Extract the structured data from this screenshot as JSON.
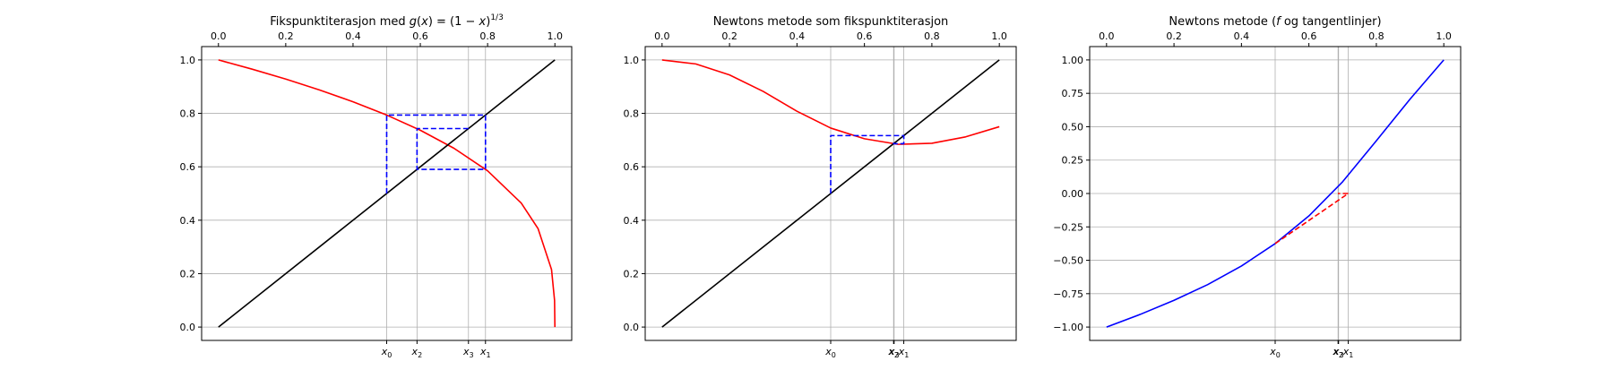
{
  "chart_data": [
    {
      "type": "line",
      "title_parts": [
        "Fikspunktiterasjon med ",
        "g",
        "(",
        "x",
        ") = (1 − ",
        "x",
        ")",
        "1/3"
      ],
      "xlim": [
        0,
        1
      ],
      "ylim": [
        -0.05,
        1.05
      ],
      "top_xticks": [
        0.0,
        0.2,
        0.4,
        0.6,
        0.8,
        1.0
      ],
      "top_xtick_labels": [
        "0.0",
        "0.2",
        "0.4",
        "0.6",
        "0.8",
        "1.0"
      ],
      "yticks": [
        0.0,
        0.2,
        0.4,
        0.6,
        0.8,
        1.0
      ],
      "ytick_labels": [
        "0.0",
        "0.2",
        "0.4",
        "0.6",
        "0.8",
        "1.0"
      ],
      "bottom_xticks": [
        {
          "x": 0.5,
          "label": "x",
          "sub": "0"
        },
        {
          "x": 0.5902,
          "label": "x",
          "sub": "2"
        },
        {
          "x": 0.7431,
          "label": "x",
          "sub": "3"
        },
        {
          "x": 0.7937,
          "label": "x",
          "sub": "1"
        }
      ],
      "vertical_grid": [
        0.5,
        0.5902,
        0.7431,
        0.7937
      ],
      "grid": true,
      "colors": {
        "curve": "#ff0000",
        "diagonal": "#000000",
        "cobweb": "#0000ff"
      },
      "series": [
        {
          "role": "curve",
          "function": "g(x) = (1 - x)^(1/3)",
          "x": [
            0,
            0.1,
            0.2,
            0.3,
            0.4,
            0.5,
            0.6,
            0.7,
            0.8,
            0.9,
            0.95,
            0.99,
            0.999,
            1.0
          ],
          "y": [
            1.0,
            0.9655,
            0.9283,
            0.8879,
            0.8434,
            0.7937,
            0.7368,
            0.6694,
            0.5848,
            0.4642,
            0.3684,
            0.2154,
            0.1,
            0.0
          ]
        },
        {
          "role": "diagonal",
          "x": [
            0,
            1
          ],
          "y": [
            0,
            1
          ]
        },
        {
          "role": "cobweb",
          "style": "dashed",
          "x": [
            0.5,
            0.5,
            0.7937,
            0.7937,
            0.5902,
            0.5902,
            0.7431
          ],
          "y": [
            0.5,
            0.7937,
            0.7937,
            0.5902,
            0.5902,
            0.7431,
            0.7431
          ]
        }
      ]
    },
    {
      "type": "line",
      "title_parts": [
        "Newtons metode som fikspunktiterasjon"
      ],
      "xlim": [
        0,
        1
      ],
      "ylim": [
        -0.05,
        1.05
      ],
      "top_xticks": [
        0.0,
        0.2,
        0.4,
        0.6,
        0.8,
        1.0
      ],
      "top_xtick_labels": [
        "0.0",
        "0.2",
        "0.4",
        "0.6",
        "0.8",
        "1.0"
      ],
      "yticks": [
        0.0,
        0.2,
        0.4,
        0.6,
        0.8,
        1.0
      ],
      "ytick_labels": [
        "0.0",
        "0.2",
        "0.4",
        "0.6",
        "0.8",
        "1.0"
      ],
      "bottom_xticks": [
        {
          "x": 0.5,
          "label": "x",
          "sub": "0"
        },
        {
          "x": 0.688,
          "label": "x",
          "sub": "3"
        },
        {
          "x": 0.6865,
          "label": "x",
          "sub": "2"
        },
        {
          "x": 0.7167,
          "label": "x",
          "sub": "1"
        }
      ],
      "vertical_grid": [
        0.5,
        0.6865,
        0.688,
        0.7167
      ],
      "grid": true,
      "colors": {
        "curve": "#ff0000",
        "diagonal": "#000000",
        "cobweb": "#0000ff"
      },
      "series": [
        {
          "role": "curve",
          "function": "Newton map N(x) = x - f(x)/f'(x)",
          "x": [
            0,
            0.1,
            0.2,
            0.3,
            0.4,
            0.5,
            0.6,
            0.7,
            0.8,
            0.9,
            1.0
          ],
          "y": [
            1.0,
            0.985,
            0.944,
            0.882,
            0.808,
            0.745,
            0.705,
            0.684,
            0.688,
            0.712,
            0.75
          ]
        },
        {
          "role": "diagonal",
          "x": [
            0,
            1
          ],
          "y": [
            0,
            1
          ]
        },
        {
          "role": "cobweb",
          "style": "dashed",
          "x": [
            0.5,
            0.5,
            0.7167,
            0.7167,
            0.6865,
            0.6865,
            0.688
          ],
          "y": [
            0.5,
            0.7167,
            0.7167,
            0.6865,
            0.6865,
            0.688,
            0.688
          ]
        }
      ]
    },
    {
      "type": "line",
      "title_parts": [
        "Newtons metode (",
        "f",
        " og tangentlinjer)"
      ],
      "xlim": [
        0,
        1
      ],
      "ylim": [
        -1.1,
        1.1
      ],
      "top_xticks": [
        0.0,
        0.2,
        0.4,
        0.6,
        0.8,
        1.0
      ],
      "top_xtick_labels": [
        "0.0",
        "0.2",
        "0.4",
        "0.6",
        "0.8",
        "1.0"
      ],
      "yticks": [
        -1.0,
        -0.75,
        -0.5,
        -0.25,
        0.0,
        0.25,
        0.5,
        0.75,
        1.0
      ],
      "ytick_labels": [
        "−1.00",
        "−0.75",
        "−0.50",
        "−0.25",
        "0.00",
        "0.25",
        "0.50",
        "0.75",
        "1.00"
      ],
      "bottom_xticks": [
        {
          "x": 0.5,
          "label": "x",
          "sub": "0"
        },
        {
          "x": 0.688,
          "label": "x",
          "sub": "3"
        },
        {
          "x": 0.6865,
          "label": "x",
          "sub": "2"
        },
        {
          "x": 0.7167,
          "label": "x",
          "sub": "1"
        }
      ],
      "vertical_grid": [
        0.5,
        0.6865,
        0.688,
        0.7167
      ],
      "grid": true,
      "colors": {
        "curve": "#0000ff",
        "tangent": "#ff0000"
      },
      "series": [
        {
          "role": "curve",
          "function": "f(x)",
          "x": [
            0,
            0.1,
            0.2,
            0.3,
            0.4,
            0.5,
            0.6,
            0.7,
            0.8,
            0.9,
            1.0
          ],
          "y": [
            -1.0,
            -0.905,
            -0.8,
            -0.682,
            -0.543,
            -0.375,
            -0.168,
            0.088,
            0.395,
            0.707,
            1.0
          ]
        },
        {
          "role": "tangent",
          "style": "dashed",
          "x": [
            0.5,
            0.7167
          ],
          "y": [
            -0.375,
            0.0
          ]
        },
        {
          "role": "tangent",
          "style": "dashed",
          "x": [
            0.7167,
            0.6865
          ],
          "y": [
            0.0,
            0.0
          ]
        },
        {
          "role": "tangent",
          "style": "dashed",
          "x": [
            0.6865,
            0.688
          ],
          "y": [
            0.0,
            0.0
          ]
        }
      ]
    }
  ]
}
